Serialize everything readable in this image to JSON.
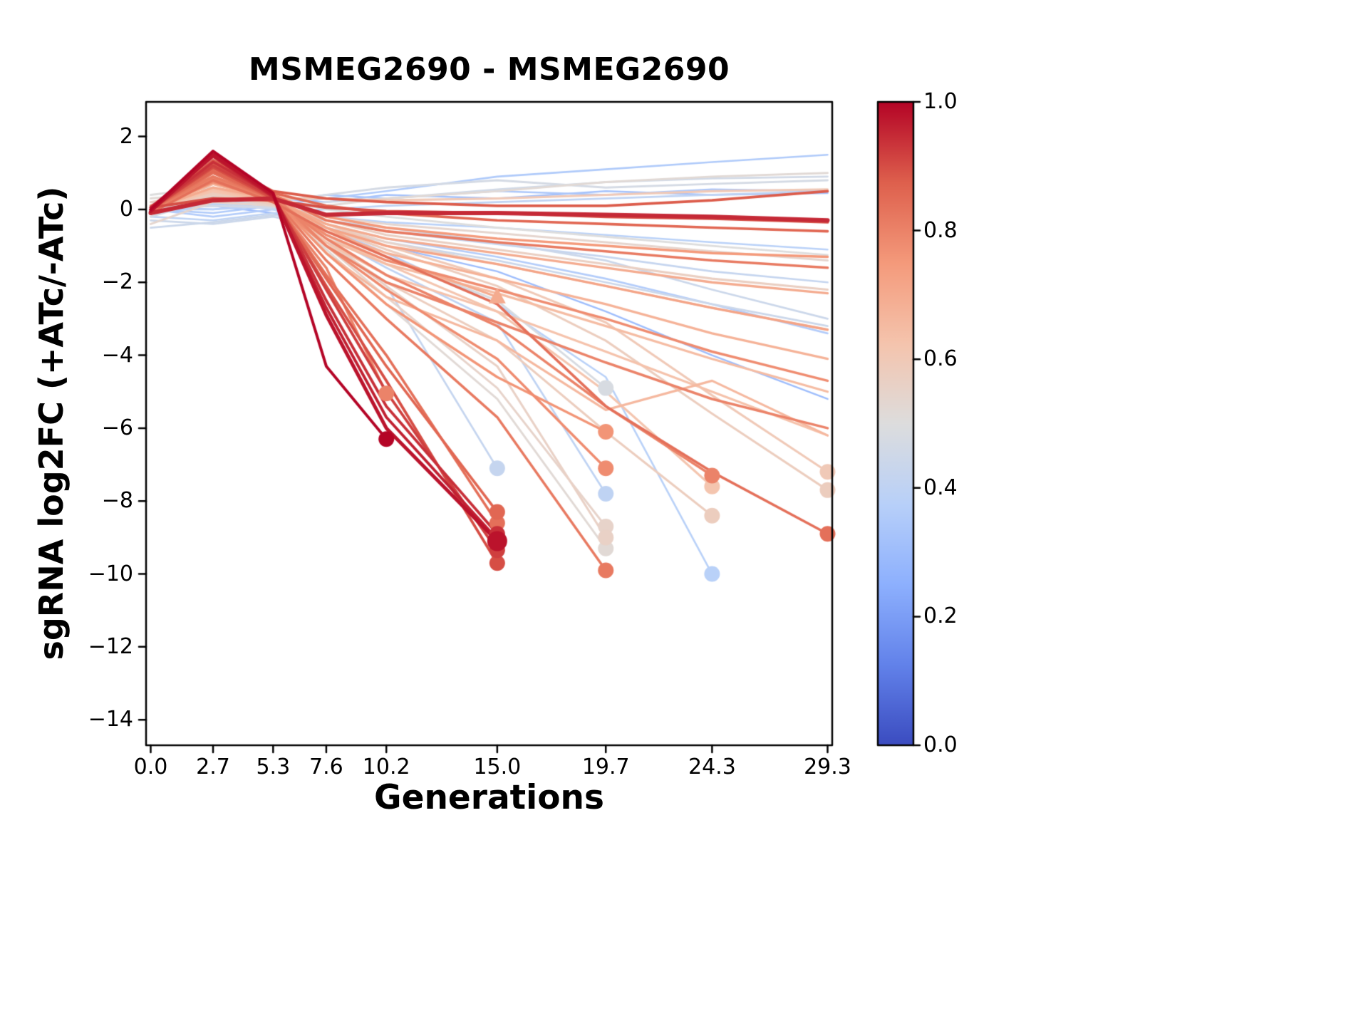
{
  "figure": {
    "title": "MSMEG2690 - MSMEG2690",
    "xlabel": "Generations",
    "ylabel": "sgRNA log2FC (+ATc/-ATc)",
    "background": "#ffffff"
  },
  "axes": {
    "xlim": [
      -0.2,
      29.5
    ],
    "ylim": [
      -14.7,
      2.95
    ],
    "x_ticks": [
      {
        "v": 0.0,
        "label": "0.0"
      },
      {
        "v": 2.7,
        "label": "2.7"
      },
      {
        "v": 5.3,
        "label": "5.3"
      },
      {
        "v": 7.6,
        "label": "7.6"
      },
      {
        "v": 10.2,
        "label": "10.2"
      },
      {
        "v": 15.0,
        "label": "15.0"
      },
      {
        "v": 19.7,
        "label": "19.7"
      },
      {
        "v": 24.3,
        "label": "24.3"
      },
      {
        "v": 29.3,
        "label": "29.3"
      }
    ],
    "y_ticks": [
      {
        "v": 2,
        "label": "2"
      },
      {
        "v": 0,
        "label": "0"
      },
      {
        "v": -2,
        "label": "−2"
      },
      {
        "v": -4,
        "label": "−4"
      },
      {
        "v": -6,
        "label": "−6"
      },
      {
        "v": -8,
        "label": "−8"
      },
      {
        "v": -10,
        "label": "−10"
      },
      {
        "v": -12,
        "label": "−12"
      },
      {
        "v": -14,
        "label": "−14"
      }
    ]
  },
  "colorbar": {
    "cmap": "coolwarm",
    "range": [
      0,
      1
    ],
    "ticks": [
      {
        "v": 1.0,
        "label": "1.0"
      },
      {
        "v": 0.8,
        "label": "0.8"
      },
      {
        "v": 0.6,
        "label": "0.6"
      },
      {
        "v": 0.4,
        "label": "0.4"
      },
      {
        "v": 0.2,
        "label": "0.2"
      },
      {
        "v": 0.0,
        "label": "0.0"
      }
    ]
  },
  "chart_data": {
    "type": "line",
    "title": "MSMEG2690 - MSMEG2690",
    "xlabel": "Generations",
    "ylabel": "sgRNA log2FC (+ATc/-ATc)",
    "x": [
      0.0,
      2.7,
      5.3,
      7.6,
      10.2,
      15.0,
      19.7,
      24.3,
      29.3
    ],
    "color_scale": {
      "cmap": "coolwarm",
      "min": 0,
      "max": 1
    },
    "marker_meaning": "filled marker drawn at the final timepoint of truncated series",
    "series": [
      {
        "c": 1.0,
        "y": [
          0.0,
          1.6,
          0.45,
          -4.3,
          -6.3
        ],
        "m": "circle"
      },
      {
        "c": 0.98,
        "y": [
          -0.05,
          1.5,
          0.4,
          -2.9,
          -6.0,
          -9.1
        ],
        "m": "circle",
        "lw": 5,
        "ms": 14
      },
      {
        "c": 0.96,
        "y": [
          0.05,
          1.45,
          0.35,
          -2.7,
          -5.7,
          -9.05
        ],
        "m": "circle"
      },
      {
        "c": 0.94,
        "y": [
          0.0,
          1.3,
          0.4,
          -2.5,
          -5.4,
          -8.9
        ],
        "m": "circle"
      },
      {
        "c": 0.92,
        "y": [
          0.0,
          1.2,
          0.35,
          -2.2,
          -5.0,
          -9.35
        ],
        "m": "circle"
      },
      {
        "c": 0.9,
        "y": [
          0.0,
          1.15,
          0.3,
          -2.1,
          -4.7,
          -9.7
        ],
        "m": "circle"
      },
      {
        "c": 0.86,
        "y": [
          0.0,
          1.05,
          0.3,
          -1.9,
          -4.3,
          -8.3
        ],
        "m": "circle"
      },
      {
        "c": 0.84,
        "y": [
          0.0,
          1.0,
          0.28,
          -1.8,
          -4.0,
          -8.6
        ],
        "m": "circle"
      },
      {
        "c": 0.8,
        "y": [
          0.1,
          0.9,
          0.25,
          -1.6,
          -5.05
        ],
        "m": "circle"
      },
      {
        "c": 0.76,
        "y": [
          0.0,
          0.8,
          0.3,
          -1.2,
          -2.6,
          -4.6,
          -6.1
        ],
        "m": "circle"
      },
      {
        "c": 0.78,
        "y": [
          0.0,
          0.75,
          0.25,
          -1.0,
          -2.2,
          -4.1,
          -7.1
        ],
        "m": "circle"
      },
      {
        "c": 0.82,
        "y": [
          0.0,
          0.9,
          0.3,
          -1.4,
          -3.0,
          -5.7,
          -9.9
        ],
        "m": "circle"
      },
      {
        "c": 0.56,
        "y": [
          0.1,
          0.45,
          0.2,
          -0.9,
          -2.1,
          -4.3,
          -9.0
        ],
        "m": "circle"
      },
      {
        "c": 0.55,
        "y": [
          0.0,
          0.4,
          0.18,
          -1.0,
          -2.4,
          -4.9,
          -8.7
        ],
        "m": "circle"
      },
      {
        "c": 0.52,
        "y": [
          0.0,
          0.35,
          0.15,
          -1.1,
          -2.6,
          -5.2,
          -9.3
        ],
        "m": "circle"
      },
      {
        "c": 0.48,
        "y": [
          0.0,
          0.3,
          0.1,
          -0.6,
          -1.3,
          -2.5,
          -4.9
        ],
        "m": "circle"
      },
      {
        "c": 0.4,
        "y": [
          0.0,
          0.1,
          0.05,
          -0.7,
          -1.6,
          -3.1,
          -7.8
        ],
        "m": "circle"
      },
      {
        "c": 0.8,
        "y": [
          0.0,
          0.85,
          0.3,
          -0.8,
          -1.8,
          -3.2,
          -5.4,
          -7.3
        ],
        "m": "circle"
      },
      {
        "c": 0.62,
        "y": [
          0.0,
          0.5,
          0.2,
          -0.7,
          -1.5,
          -2.8,
          -5.0,
          -7.6
        ],
        "m": "circle"
      },
      {
        "c": 0.58,
        "y": [
          0.0,
          0.45,
          0.15,
          -0.9,
          -2.0,
          -3.6,
          -6.1,
          -8.4
        ],
        "m": "circle"
      },
      {
        "c": 0.38,
        "y": [
          0.0,
          0.15,
          0.05,
          -0.5,
          -1.2,
          -2.6,
          -4.6,
          -10.0
        ],
        "m": "circle"
      },
      {
        "c": 0.42,
        "y": [
          0.0,
          0.2,
          0.1,
          -0.8,
          -2.1,
          -7.1
        ],
        "m": "circle"
      },
      {
        "c": 0.7,
        "y": [
          0.0,
          0.6,
          0.3,
          -0.5,
          -1.3,
          -2.4
        ],
        "m": "triangle"
      },
      {
        "c": 0.84,
        "y": [
          -0.1,
          0.8,
          0.2,
          -0.6,
          -1.3,
          -2.6,
          -5.4,
          -7.2,
          -8.9
        ],
        "m": "circle"
      },
      {
        "c": 0.6,
        "y": [
          0.0,
          0.5,
          0.2,
          -0.4,
          -1.0,
          -1.9,
          -3.1,
          -5.1,
          -7.2
        ],
        "m": "circle"
      },
      {
        "c": 0.58,
        "y": [
          0.0,
          0.42,
          0.15,
          -0.5,
          -1.1,
          -2.1,
          -3.6,
          -5.6,
          -7.7
        ],
        "m": "circle"
      },
      {
        "c": 0.95,
        "y": [
          -0.1,
          0.25,
          0.3,
          -0.15,
          -0.1,
          -0.1,
          -0.15,
          -0.2,
          -0.3
        ],
        "lw": 6
      },
      {
        "c": 0.88,
        "y": [
          0.0,
          1.35,
          0.5,
          0.3,
          0.2,
          0.1,
          0.1,
          0.25,
          0.5
        ]
      },
      {
        "c": 0.86,
        "y": [
          0.0,
          1.25,
          0.45,
          0.1,
          -0.1,
          -0.3,
          -0.4,
          -0.5,
          -0.6
        ]
      },
      {
        "c": 0.75,
        "y": [
          0.0,
          1.0,
          0.4,
          -0.2,
          -0.5,
          -0.8,
          -1.0,
          -1.2,
          -1.3
        ]
      },
      {
        "c": 0.7,
        "y": [
          0.0,
          0.8,
          0.3,
          -0.4,
          -0.8,
          -1.2,
          -1.6,
          -2.0,
          -2.3
        ]
      },
      {
        "c": 0.72,
        "y": [
          0.0,
          0.9,
          0.3,
          -0.5,
          -1.0,
          -1.5,
          -2.1,
          -2.7,
          -3.3
        ]
      },
      {
        "c": 0.68,
        "y": [
          0.0,
          0.7,
          0.25,
          -0.6,
          -1.2,
          -1.9,
          -2.6,
          -3.4,
          -4.1
        ]
      },
      {
        "c": 0.65,
        "y": [
          0.0,
          0.6,
          0.2,
          -0.8,
          -1.5,
          -2.3,
          -3.2,
          -4.1,
          -5.0
        ]
      },
      {
        "c": 0.78,
        "y": [
          0.0,
          0.85,
          0.3,
          -0.7,
          -1.4,
          -2.2,
          -3.0,
          -3.9,
          -4.7
        ]
      },
      {
        "c": 0.63,
        "y": [
          0.0,
          0.55,
          0.2,
          -0.9,
          -1.8,
          -2.8,
          -3.9,
          -5.0,
          -6.2
        ]
      },
      {
        "c": 0.8,
        "y": [
          0.0,
          1.05,
          0.4,
          -1.0,
          -2.0,
          -3.1,
          -4.2,
          -5.2,
          -6.0
        ]
      },
      {
        "c": 0.66,
        "y": [
          0.0,
          0.7,
          0.3,
          -1.2,
          -2.4,
          -3.6,
          -5.5,
          -4.7,
          -6.2
        ]
      },
      {
        "c": 0.57,
        "y": [
          0.2,
          0.5,
          0.2,
          -0.3,
          -0.7,
          -1.1,
          -1.5,
          -1.9,
          -2.2
        ]
      },
      {
        "c": 0.55,
        "y": [
          0.1,
          0.4,
          0.1,
          -0.4,
          -0.9,
          -1.5,
          -2.1,
          -2.7,
          -3.3
        ]
      },
      {
        "c": 0.6,
        "y": [
          0.0,
          0.5,
          0.3,
          0.3,
          0.25,
          0.3,
          0.4,
          0.5,
          0.55
        ]
      },
      {
        "c": 0.52,
        "y": [
          0.3,
          0.45,
          0.2,
          0.1,
          0.3,
          0.5,
          0.75,
          0.9,
          1.0
        ]
      },
      {
        "c": 0.46,
        "y": [
          0.0,
          0.1,
          0.05,
          0.2,
          0.3,
          0.55,
          0.75,
          0.85,
          0.9
        ]
      },
      {
        "c": 0.35,
        "y": [
          0.0,
          -0.1,
          0.1,
          0.3,
          0.5,
          0.9,
          1.1,
          1.3,
          1.5
        ]
      },
      {
        "c": 0.4,
        "y": [
          -0.2,
          -0.3,
          -0.1,
          0.0,
          0.1,
          0.2,
          0.3,
          0.4,
          0.5
        ]
      },
      {
        "c": 0.38,
        "y": [
          0.0,
          0.0,
          0.1,
          -0.2,
          -0.35,
          -0.5,
          -0.7,
          -0.9,
          -1.1
        ]
      },
      {
        "c": 0.42,
        "y": [
          0.1,
          0.2,
          0.0,
          -0.3,
          -0.6,
          -0.95,
          -1.3,
          -1.7,
          -2.0
        ]
      },
      {
        "c": 0.36,
        "y": [
          0.0,
          -0.2,
          0.0,
          -0.4,
          -0.8,
          -1.3,
          -1.9,
          -2.6,
          -3.4
        ]
      },
      {
        "c": 0.3,
        "y": [
          0.0,
          0.1,
          -0.1,
          -0.5,
          -1.0,
          -1.7,
          -2.8,
          -4.0,
          -5.2
        ]
      },
      {
        "c": 0.44,
        "y": [
          -0.3,
          -0.4,
          -0.2,
          -0.5,
          -0.9,
          -1.4,
          -2.0,
          -2.6,
          -3.2
        ]
      },
      {
        "c": 0.5,
        "y": [
          0.4,
          0.6,
          0.3,
          0.0,
          -0.2,
          -0.5,
          -0.75,
          -1.0,
          -1.25
        ]
      },
      {
        "c": 0.54,
        "y": [
          -0.4,
          0.2,
          0.1,
          -0.2,
          -0.4,
          -0.65,
          -0.9,
          -1.15,
          -1.4
        ]
      },
      {
        "c": 0.34,
        "y": [
          0.1,
          0.0,
          0.2,
          0.4,
          0.3,
          0.5,
          0.4,
          0.55,
          0.5
        ]
      },
      {
        "c": 0.47,
        "y": [
          -0.2,
          0.3,
          0.2,
          0.4,
          0.6,
          0.8,
          0.6,
          0.7,
          0.8
        ]
      },
      {
        "c": 0.82,
        "y": [
          0.0,
          1.1,
          0.4,
          -0.3,
          -0.6,
          -0.9,
          -1.15,
          -1.4,
          -1.6
        ]
      },
      {
        "c": 0.9,
        "y": [
          0.05,
          0.3,
          0.25,
          0.05,
          -0.05,
          -0.1,
          -0.2,
          -0.25,
          -0.35
        ],
        "lw": 4
      },
      {
        "c": 0.44,
        "y": [
          -0.5,
          -0.35,
          -0.15,
          -0.3,
          -0.5,
          -0.9,
          -1.4,
          -2.2,
          -3.0
        ]
      },
      {
        "c": 0.32,
        "y": [
          0.2,
          0.1,
          0.3,
          0.2,
          0.4,
          0.3,
          0.5,
          0.4,
          0.45
        ]
      }
    ]
  }
}
